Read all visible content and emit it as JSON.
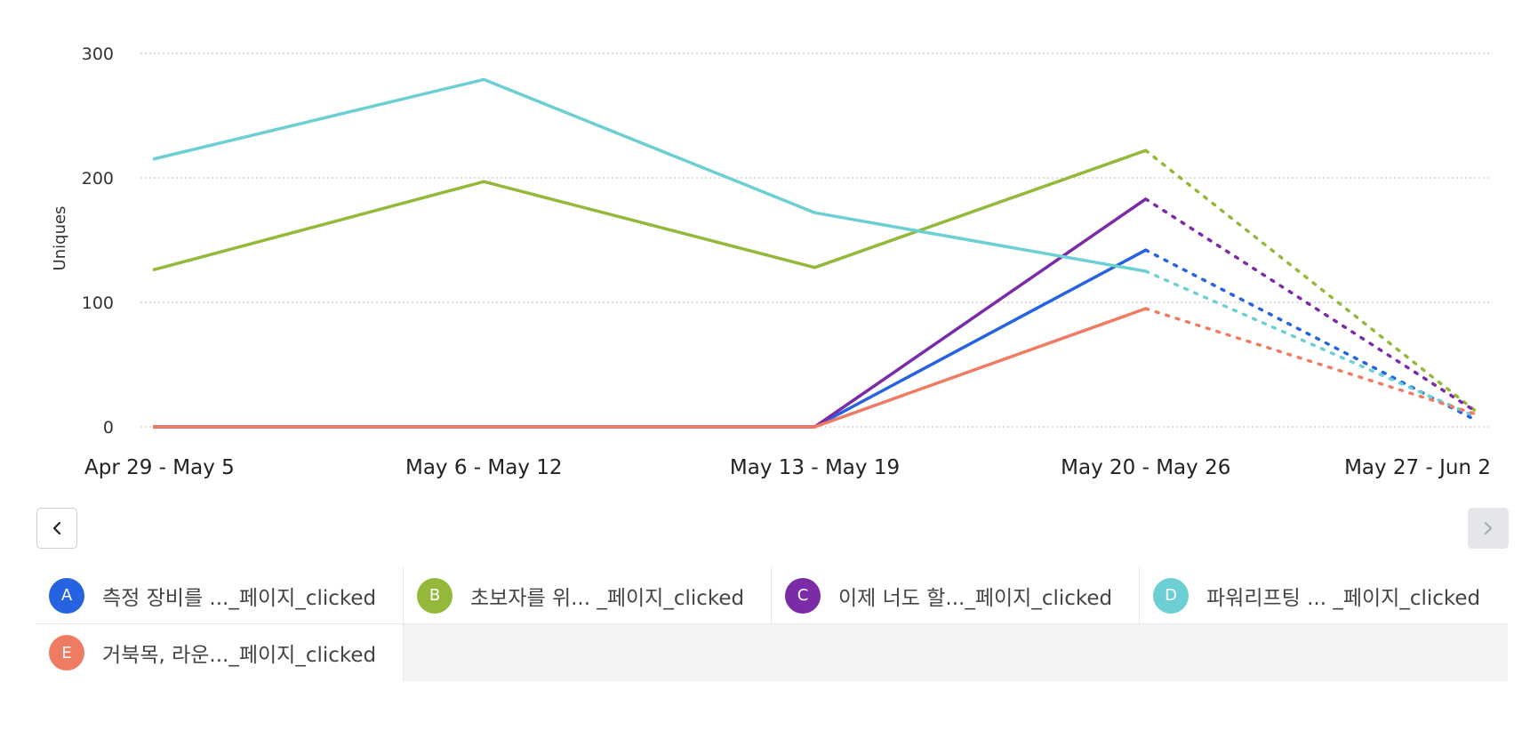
{
  "chart_data": {
    "type": "line",
    "ylabel": "Uniques",
    "xlabel": "",
    "title": "",
    "ylim": [
      0,
      300
    ],
    "yticks": [
      0,
      100,
      200,
      300
    ],
    "grid": true,
    "categories": [
      "Apr 29 - May 5",
      "May 6 - May 12",
      "May 13 - May 19",
      "May 20 - May 26",
      "May 27 - Jun 2"
    ],
    "incomplete_from_index": 3,
    "series": [
      {
        "id": "A",
        "name": "측정 장비를 ..._페이지_clicked",
        "color": "#2563e0",
        "values": [
          0,
          0,
          0,
          142,
          5
        ]
      },
      {
        "id": "B",
        "name": "초보자를 위... _페이지_clicked",
        "color": "#94b83a",
        "values": [
          126,
          197,
          128,
          222,
          12
        ]
      },
      {
        "id": "C",
        "name": "이제 너도 할..._페이지_clicked",
        "color": "#7b2aa8",
        "values": [
          0,
          0,
          0,
          183,
          12
        ]
      },
      {
        "id": "D",
        "name": "파워리프팅 ... _페이지_clicked",
        "color": "#6ccfd3",
        "values": [
          215,
          279,
          172,
          125,
          8
        ]
      },
      {
        "id": "E",
        "name": "거북목, 라운..._페이지_clicked",
        "color": "#f07b63",
        "values": [
          0,
          0,
          0,
          95,
          10
        ]
      }
    ]
  },
  "nav": {
    "prev_icon": "chevron-left-icon",
    "next_icon": "chevron-right-icon"
  }
}
